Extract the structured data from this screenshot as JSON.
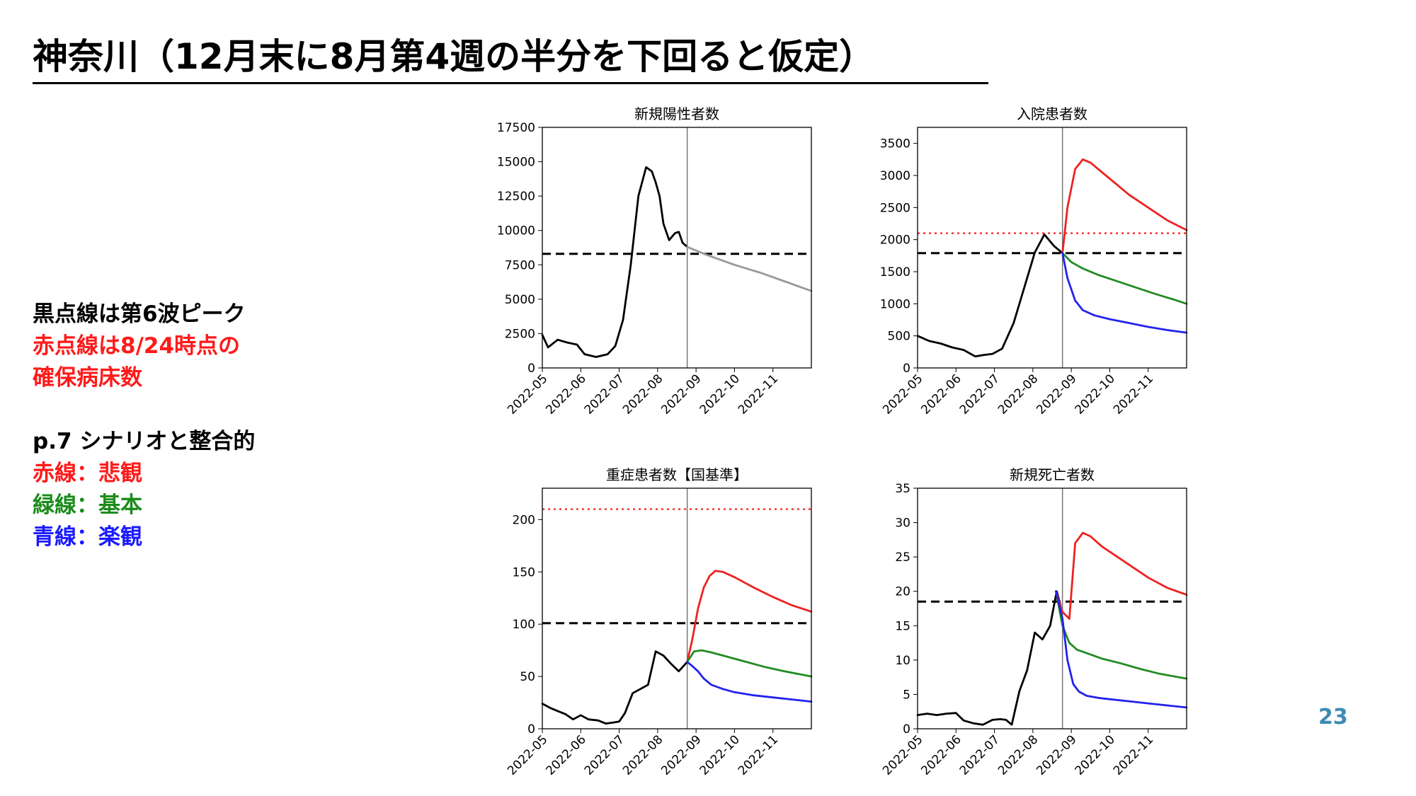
{
  "slide": {
    "title": "神奈川（12月末に8月第4週の半分を下回ると仮定）",
    "page_number": "23",
    "notes": [
      {
        "text": "黒点線は第6波ピーク",
        "color": "#000000"
      },
      {
        "text": "赤点線は8/24時点の",
        "color": "#ff1a1a"
      },
      {
        "text": "確保病床数",
        "color": "#ff1a1a"
      },
      {
        "text": "p.7 シナリオと整合的",
        "color": "#000000"
      },
      {
        "text": "赤線：悲観",
        "color": "#ff1a1a"
      },
      {
        "text": "緑線：基本",
        "color": "#1a8c1a"
      },
      {
        "text": "青線：楽観",
        "color": "#1a1aff"
      }
    ]
  },
  "colors": {
    "actual": "#000000",
    "pessimistic": "#ee2222",
    "base": "#228b22",
    "optimistic": "#2222ee",
    "forecast": "#999999",
    "accent": "#3d8bb5"
  },
  "chart_data": [
    {
      "type": "line",
      "title": "新規陽性者数",
      "xticks": [
        "2022-05",
        "2022-06",
        "2022-07",
        "2022-08",
        "2022-09",
        "2022-10",
        "2022-11"
      ],
      "xlim": [
        0,
        7
      ],
      "ylim": [
        0,
        17500
      ],
      "yticks": [
        0,
        2500,
        5000,
        7500,
        10000,
        12500,
        15000,
        17500
      ],
      "vline": 3.77,
      "hlines": [
        {
          "y": 8300,
          "style": "dashed",
          "color": "#000000"
        }
      ],
      "series": [
        {
          "role": "actual",
          "color": "#000000",
          "x": [
            0,
            0.15,
            0.4,
            0.65,
            0.9,
            1.1,
            1.4,
            1.7,
            1.9,
            2.1,
            2.3,
            2.5,
            2.7,
            2.85,
            2.95,
            3.05,
            3.15,
            3.3,
            3.45,
            3.55,
            3.65,
            3.77
          ],
          "y": [
            2400,
            1500,
            2050,
            1850,
            1700,
            1000,
            800,
            1000,
            1600,
            3500,
            7500,
            12500,
            14600,
            14300,
            13500,
            12500,
            10500,
            9300,
            9800,
            9900,
            9100,
            8800
          ]
        },
        {
          "role": "forecast",
          "color": "#999999",
          "x": [
            3.77,
            4.3,
            5,
            5.7,
            6.4,
            7
          ],
          "y": [
            8800,
            8200,
            7500,
            6900,
            6200,
            5600
          ]
        }
      ]
    },
    {
      "type": "line",
      "title": "入院患者数",
      "xticks": [
        "2022-05",
        "2022-06",
        "2022-07",
        "2022-08",
        "2022-09",
        "2022-10",
        "2022-11"
      ],
      "xlim": [
        0,
        7
      ],
      "ylim": [
        0,
        3750
      ],
      "yticks": [
        0,
        500,
        1000,
        1500,
        2000,
        2500,
        3000,
        3500
      ],
      "vline": 3.77,
      "hlines": [
        {
          "y": 1790,
          "style": "dashed",
          "color": "#000000"
        },
        {
          "y": 2100,
          "style": "dotted",
          "color": "#ff3333"
        }
      ],
      "series": [
        {
          "role": "actual",
          "color": "#000000",
          "x": [
            0,
            0.3,
            0.6,
            0.9,
            1.2,
            1.5,
            1.7,
            1.95,
            2.2,
            2.5,
            2.8,
            3.05,
            3.3,
            3.55,
            3.77
          ],
          "y": [
            500,
            420,
            380,
            320,
            280,
            180,
            200,
            220,
            300,
            700,
            1300,
            1800,
            2080,
            1900,
            1790
          ]
        },
        {
          "role": "pessimistic",
          "color": "#ee2222",
          "x": [
            3.77,
            3.9,
            4.1,
            4.3,
            4.5,
            5,
            5.5,
            6,
            6.5,
            7
          ],
          "y": [
            1790,
            2500,
            3100,
            3250,
            3200,
            2950,
            2700,
            2500,
            2300,
            2150
          ]
        },
        {
          "role": "base",
          "color": "#228b22",
          "x": [
            3.77,
            4,
            4.3,
            4.7,
            5.2,
            5.7,
            6.2,
            6.7,
            7
          ],
          "y": [
            1790,
            1650,
            1550,
            1450,
            1350,
            1250,
            1150,
            1060,
            1000
          ]
        },
        {
          "role": "optimistic",
          "color": "#2222ee",
          "x": [
            3.77,
            3.9,
            4.1,
            4.3,
            4.6,
            5,
            5.5,
            6,
            6.5,
            7
          ],
          "y": [
            1790,
            1400,
            1050,
            900,
            820,
            760,
            700,
            640,
            590,
            550
          ]
        }
      ]
    },
    {
      "type": "line",
      "title": "重症患者数【国基準】",
      "xticks": [
        "2022-05",
        "2022-06",
        "2022-07",
        "2022-08",
        "2022-09",
        "2022-10",
        "2022-11"
      ],
      "xlim": [
        0,
        7
      ],
      "ylim": [
        0,
        230
      ],
      "yticks": [
        0,
        50,
        100,
        150,
        200
      ],
      "vline": 3.77,
      "hlines": [
        {
          "y": 101,
          "style": "dashed",
          "color": "#000000"
        },
        {
          "y": 210,
          "style": "dotted",
          "color": "#ff3333"
        }
      ],
      "series": [
        {
          "role": "actual",
          "color": "#000000",
          "x": [
            0,
            0.2,
            0.4,
            0.6,
            0.8,
            1.0,
            1.2,
            1.45,
            1.65,
            1.85,
            2.0,
            2.15,
            2.35,
            2.55,
            2.75,
            2.95,
            3.15,
            3.35,
            3.55,
            3.77
          ],
          "y": [
            24,
            20,
            17,
            14,
            9,
            13,
            9,
            8,
            5,
            6,
            7,
            15,
            34,
            38,
            42,
            74,
            70,
            62,
            55,
            64
          ]
        },
        {
          "role": "pessimistic",
          "color": "#ee2222",
          "x": [
            3.77,
            3.9,
            4.05,
            4.2,
            4.35,
            4.5,
            4.7,
            5,
            5.5,
            6,
            6.5,
            7
          ],
          "y": [
            64,
            85,
            115,
            135,
            146,
            151,
            150,
            145,
            135,
            126,
            118,
            112
          ]
        },
        {
          "role": "base",
          "color": "#228b22",
          "x": [
            3.77,
            3.95,
            4.15,
            4.4,
            4.8,
            5.3,
            5.8,
            6.3,
            7
          ],
          "y": [
            64,
            74,
            75,
            73,
            69,
            64,
            59,
            55,
            50
          ]
        },
        {
          "role": "optimistic",
          "color": "#2222ee",
          "x": [
            3.77,
            3.9,
            4.05,
            4.2,
            4.4,
            4.7,
            5,
            5.5,
            6,
            6.5,
            7
          ],
          "y": [
            64,
            60,
            55,
            48,
            42,
            38,
            35,
            32,
            30,
            28,
            26
          ]
        }
      ]
    },
    {
      "type": "line",
      "title": "新規死亡者数",
      "xticks": [
        "2022-05",
        "2022-06",
        "2022-07",
        "2022-08",
        "2022-09",
        "2022-10",
        "2022-11"
      ],
      "xlim": [
        0,
        7
      ],
      "ylim": [
        0,
        35
      ],
      "yticks": [
        0,
        5,
        10,
        15,
        20,
        25,
        30,
        35
      ],
      "vline": 3.77,
      "hlines": [
        {
          "y": 18.5,
          "style": "dashed",
          "color": "#000000"
        }
      ],
      "series": [
        {
          "role": "actual",
          "color": "#000000",
          "x": [
            0,
            0.25,
            0.5,
            0.75,
            1.0,
            1.2,
            1.45,
            1.7,
            1.95,
            2.15,
            2.3,
            2.45,
            2.65,
            2.85,
            3.05,
            3.25,
            3.45,
            3.62,
            3.72
          ],
          "y": [
            2,
            2.2,
            2,
            2.2,
            2.3,
            1.2,
            0.8,
            0.6,
            1.3,
            1.4,
            1.3,
            0.6,
            5.5,
            8.5,
            14,
            13,
            15,
            20,
            18
          ]
        },
        {
          "role": "pessimistic",
          "color": "#ee2222",
          "x": [
            3.6,
            3.77,
            3.95,
            4.1,
            4.3,
            4.5,
            4.8,
            5.2,
            5.6,
            6,
            6.5,
            7
          ],
          "y": [
            20,
            17,
            16,
            27,
            28.5,
            28,
            26.5,
            25,
            23.5,
            22,
            20.5,
            19.5
          ]
        },
        {
          "role": "base",
          "color": "#228b22",
          "x": [
            3.6,
            3.77,
            3.95,
            4.15,
            4.4,
            4.8,
            5.3,
            5.8,
            6.3,
            7
          ],
          "y": [
            20,
            15,
            12.5,
            11.5,
            11,
            10.2,
            9.5,
            8.7,
            8,
            7.3
          ]
        },
        {
          "role": "optimistic",
          "color": "#2222ee",
          "x": [
            3.6,
            3.77,
            3.9,
            4.05,
            4.2,
            4.4,
            4.7,
            5,
            5.5,
            6,
            6.5,
            7
          ],
          "y": [
            20,
            16,
            10,
            6.5,
            5.4,
            4.8,
            4.5,
            4.3,
            4,
            3.7,
            3.4,
            3.1
          ]
        }
      ]
    }
  ]
}
